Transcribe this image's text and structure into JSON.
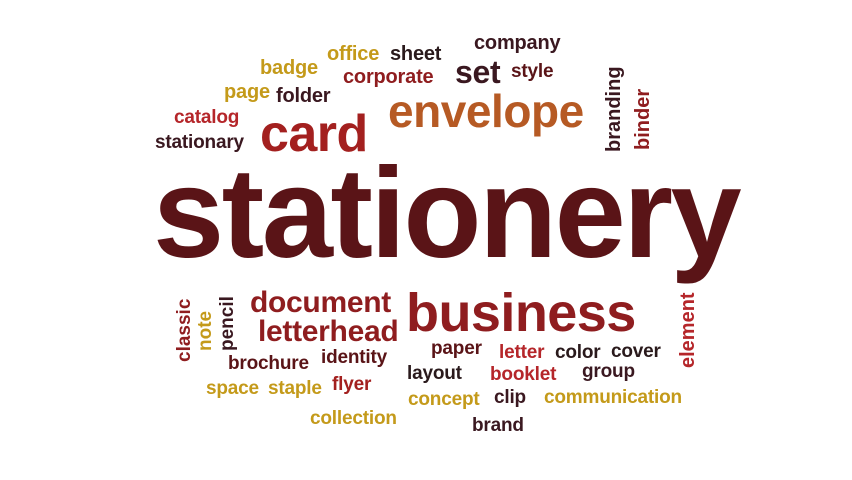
{
  "colors": {
    "maroon": "#5a1417",
    "dark_red": "#8f1d1f",
    "red": "#b5262a",
    "brown_orange": "#b65a24",
    "gold": "#c49a1a",
    "dark_plum": "#3a1820",
    "near_black": "#2a1a1c"
  },
  "words": {
    "stationery": "stationery",
    "business": "business",
    "envelope": "envelope",
    "card": "card",
    "set": "set",
    "document": "document",
    "letterhead": "letterhead",
    "company": "company",
    "office": "office",
    "sheet": "sheet",
    "badge": "badge",
    "corporate": "corporate",
    "style": "style",
    "page": "page",
    "folder": "folder",
    "catalog": "catalog",
    "stationary": "stationary",
    "branding": "branding",
    "binder": "binder",
    "classic": "classic",
    "note": "note",
    "pencil": "pencil",
    "element": "element",
    "brochure": "brochure",
    "identity": "identity",
    "paper": "paper",
    "letter": "letter",
    "color": "color",
    "cover": "cover",
    "space": "space",
    "staple": "staple",
    "flyer": "flyer",
    "layout": "layout",
    "booklet": "booklet",
    "group": "group",
    "concept": "concept",
    "clip": "clip",
    "communication": "communication",
    "collection": "collection",
    "brand": "brand"
  }
}
